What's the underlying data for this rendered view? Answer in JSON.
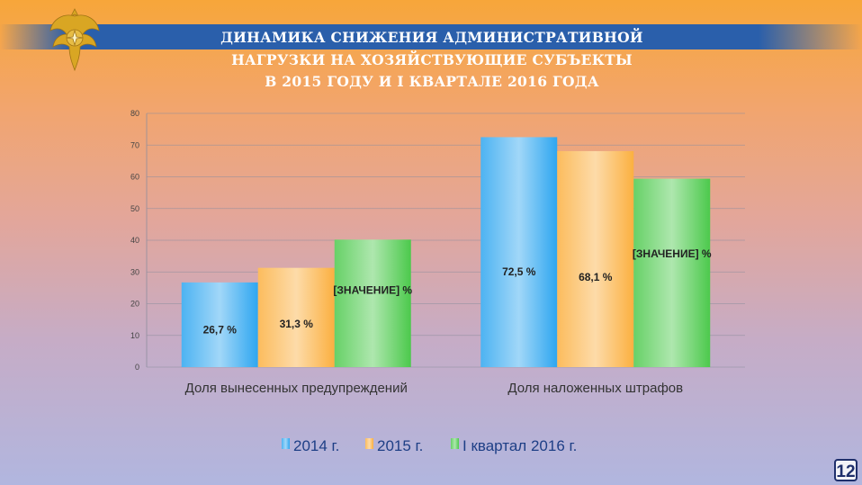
{
  "header": {
    "title_lines": [
      "ДИНАМИКА СНИЖЕНИЯ АДМИНИСТРАТИВНОЙ",
      "НАГРУЗКИ НА ХОЗЯЙСТВУЮЩИЕ СУБЪЕКТЫ",
      "В 2015 ГОДУ И I КВАРТАЛЕ 2016 ГОДА"
    ]
  },
  "emblem": {
    "icon": "emchs-emblem-icon",
    "color": "#d4a017"
  },
  "chart_data": {
    "type": "bar",
    "categories": [
      "Доля вынесенных предупреждений",
      "Доля наложенных штрафов"
    ],
    "series": [
      {
        "name": "2014 г.",
        "values": [
          26.7,
          72.5
        ],
        "labels": [
          "26,7 %",
          "72,5 %"
        ],
        "color": "#2ea6f0"
      },
      {
        "name": "2015 г.",
        "values": [
          31.3,
          68.1
        ],
        "labels": [
          "31,3 %",
          "68,1 %"
        ],
        "color": "#fbb040"
      },
      {
        "name": "I квартал 2016 г.",
        "values": [
          40.2,
          59.4
        ],
        "labels": [
          "[ЗНАЧЕНИЕ] %",
          "[ЗНАЧЕНИЕ] %"
        ],
        "color": "#4cc94c"
      }
    ],
    "ylim": [
      0,
      80
    ],
    "yticks": [
      0,
      10,
      20,
      30,
      40,
      50,
      60,
      70,
      80
    ],
    "grid": true,
    "legend": "bottom"
  },
  "footer": {
    "page_number": "12"
  }
}
